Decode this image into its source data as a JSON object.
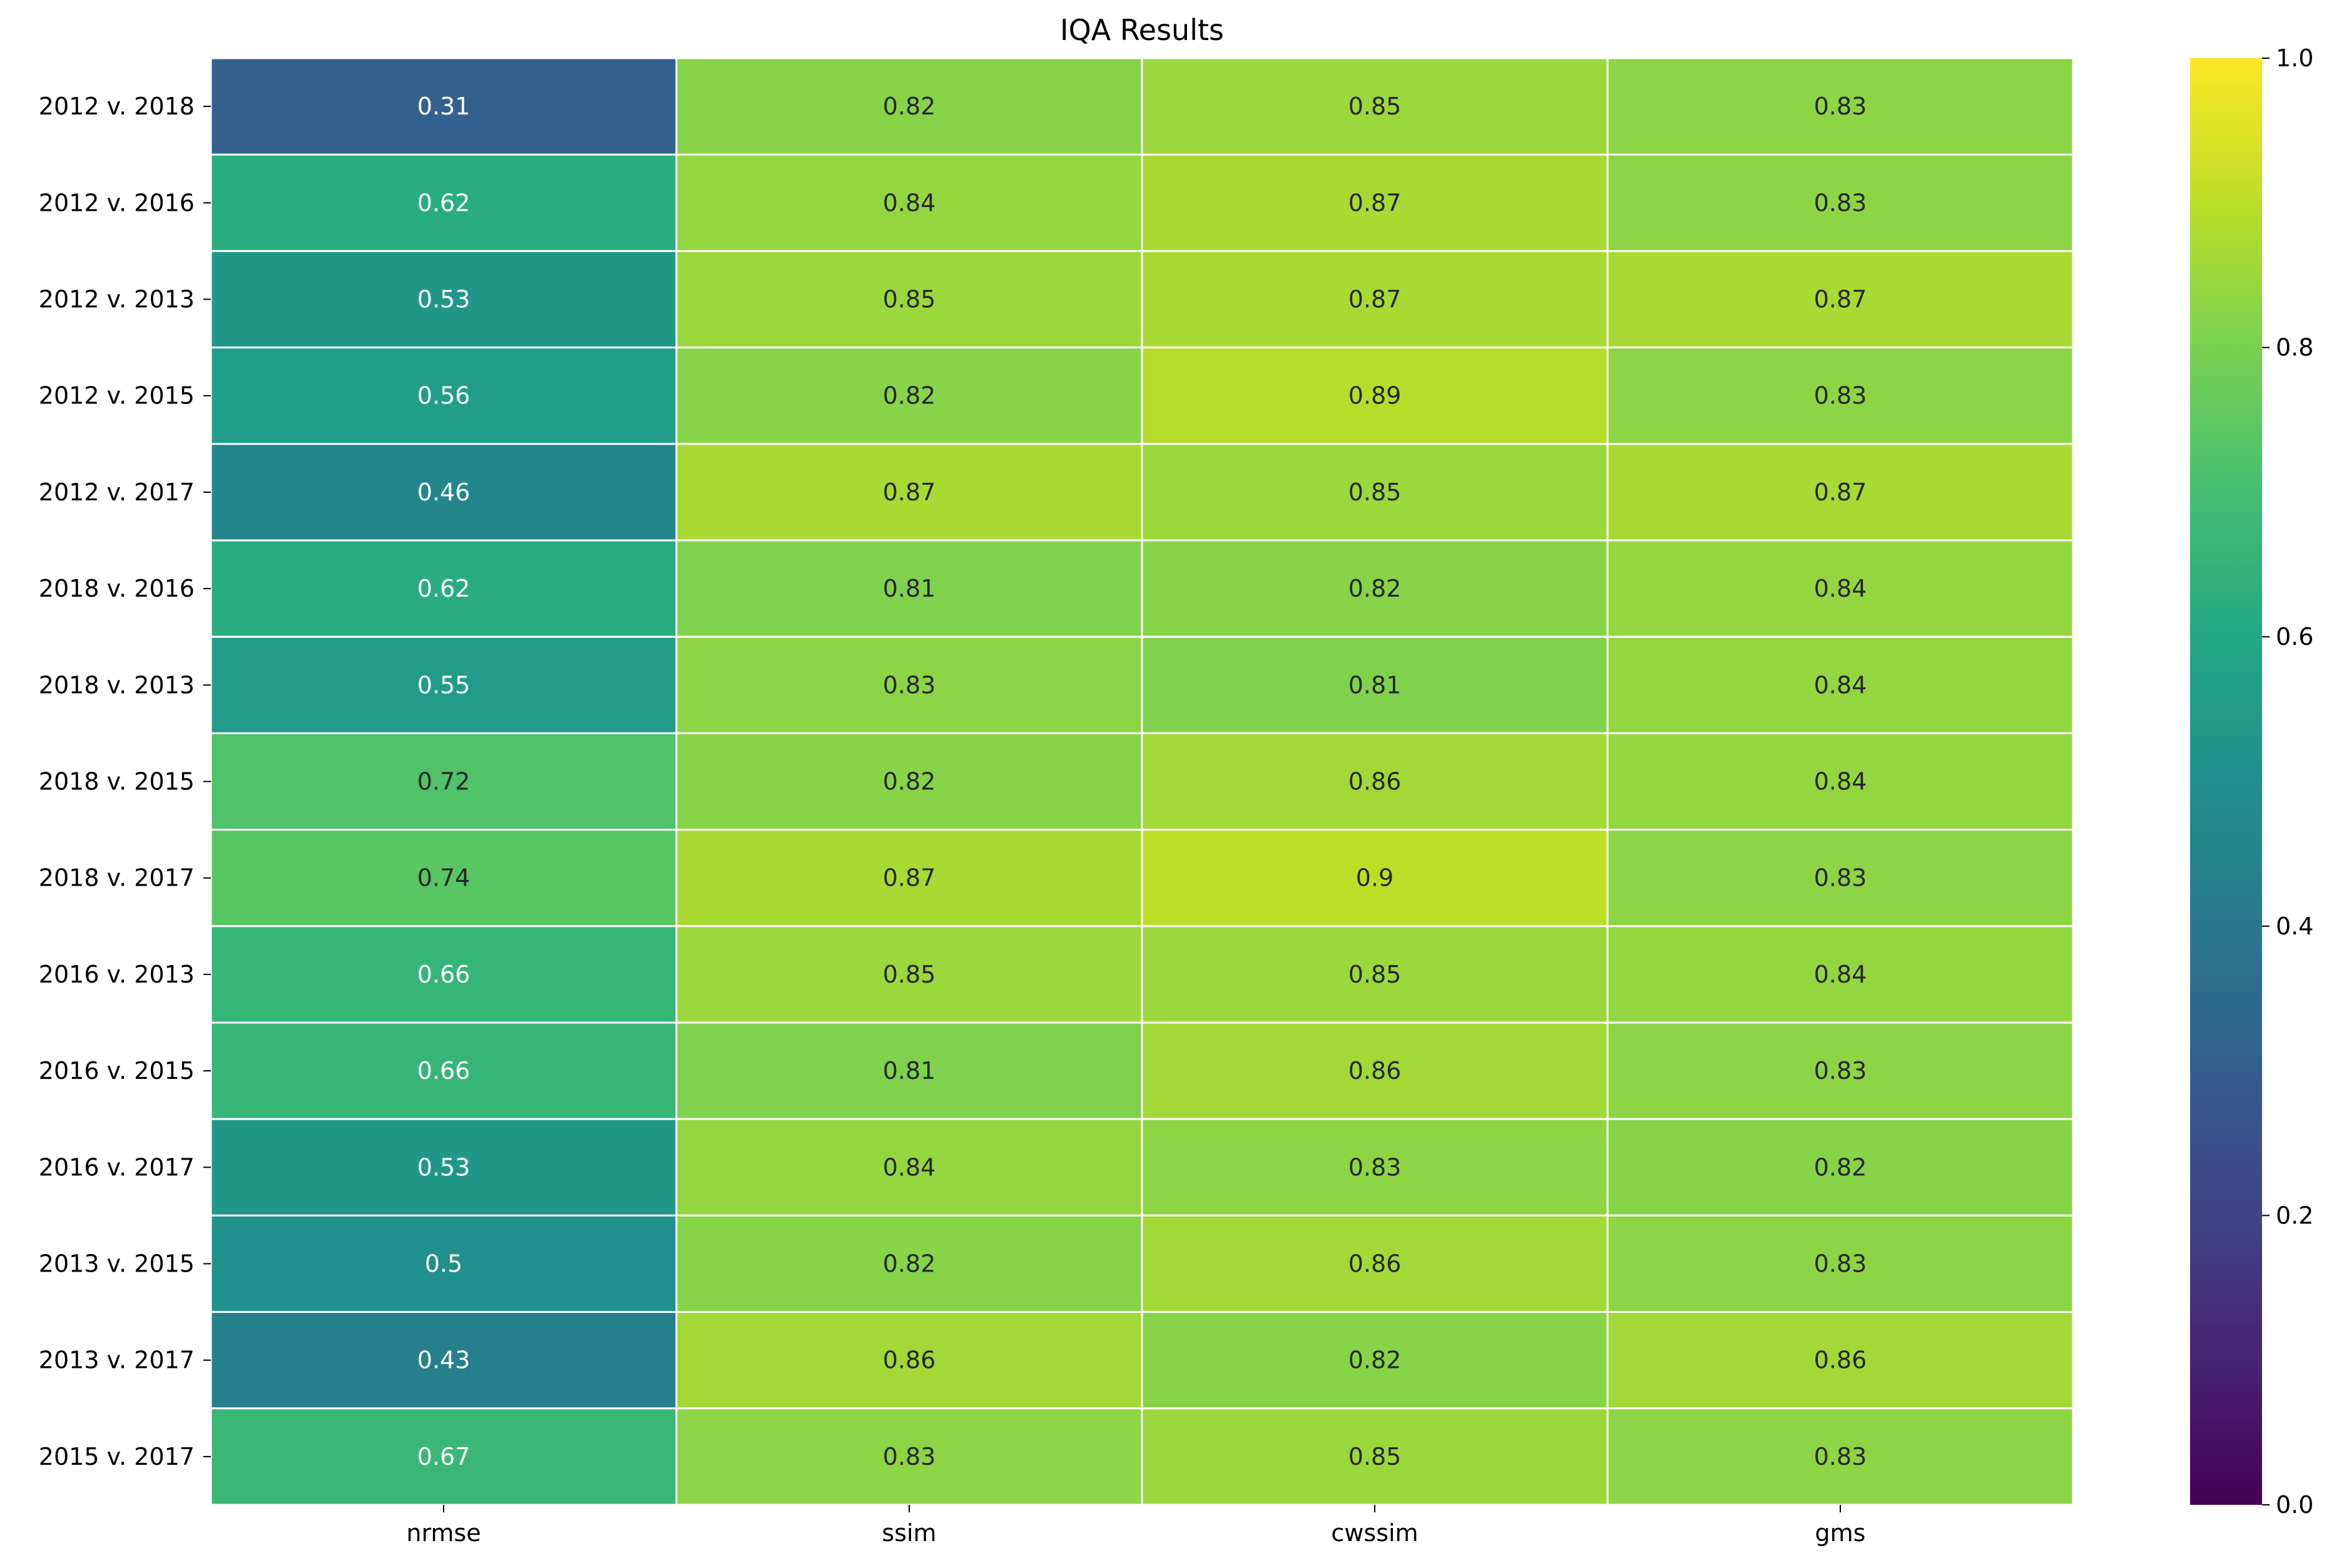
{
  "chart_data": {
    "type": "heatmap",
    "title": "IQA Results",
    "colormap": "viridis",
    "vmin": 0.0,
    "vmax": 1.0,
    "x_categories": [
      "nrmse",
      "ssim",
      "cwssim",
      "gms"
    ],
    "y_categories": [
      "2012 v. 2018",
      "2012 v. 2016",
      "2012 v. 2013",
      "2012 v. 2015",
      "2012 v. 2017",
      "2018 v. 2016",
      "2018 v. 2013",
      "2018 v. 2015",
      "2018 v. 2017",
      "2016 v. 2013",
      "2016 v. 2015",
      "2016 v. 2017",
      "2013 v. 2015",
      "2013 v. 2017",
      "2015 v. 2017"
    ],
    "values": [
      [
        0.31,
        0.82,
        0.85,
        0.83
      ],
      [
        0.62,
        0.84,
        0.87,
        0.83
      ],
      [
        0.53,
        0.85,
        0.87,
        0.87
      ],
      [
        0.56,
        0.82,
        0.89,
        0.83
      ],
      [
        0.46,
        0.87,
        0.85,
        0.87
      ],
      [
        0.62,
        0.81,
        0.82,
        0.84
      ],
      [
        0.55,
        0.83,
        0.81,
        0.84
      ],
      [
        0.72,
        0.82,
        0.86,
        0.84
      ],
      [
        0.74,
        0.87,
        0.9,
        0.83
      ],
      [
        0.66,
        0.85,
        0.85,
        0.84
      ],
      [
        0.66,
        0.81,
        0.86,
        0.83
      ],
      [
        0.53,
        0.84,
        0.83,
        0.82
      ],
      [
        0.5,
        0.82,
        0.86,
        0.83
      ],
      [
        0.43,
        0.86,
        0.82,
        0.86
      ],
      [
        0.67,
        0.83,
        0.85,
        0.83
      ]
    ],
    "annotations": [
      [
        "0.31",
        "0.82",
        "0.85",
        "0.83"
      ],
      [
        "0.62",
        "0.84",
        "0.87",
        "0.83"
      ],
      [
        "0.53",
        "0.85",
        "0.87",
        "0.87"
      ],
      [
        "0.56",
        "0.82",
        "0.89",
        "0.83"
      ],
      [
        "0.46",
        "0.87",
        "0.85",
        "0.87"
      ],
      [
        "0.62",
        "0.81",
        "0.82",
        "0.84"
      ],
      [
        "0.55",
        "0.83",
        "0.81",
        "0.84"
      ],
      [
        "0.72",
        "0.82",
        "0.86",
        "0.84"
      ],
      [
        "0.74",
        "0.87",
        "0.9",
        "0.83"
      ],
      [
        "0.66",
        "0.85",
        "0.85",
        "0.84"
      ],
      [
        "0.66",
        "0.81",
        "0.86",
        "0.83"
      ],
      [
        "0.53",
        "0.84",
        "0.83",
        "0.82"
      ],
      [
        "0.5",
        "0.82",
        "0.86",
        "0.83"
      ],
      [
        "0.43",
        "0.86",
        "0.82",
        "0.86"
      ],
      [
        "0.67",
        "0.83",
        "0.85",
        "0.83"
      ]
    ],
    "colorbar_ticks": [
      "0.0",
      "0.2",
      "0.4",
      "0.6",
      "0.8",
      "1.0"
    ],
    "grid": false,
    "cell_borders": "white"
  }
}
